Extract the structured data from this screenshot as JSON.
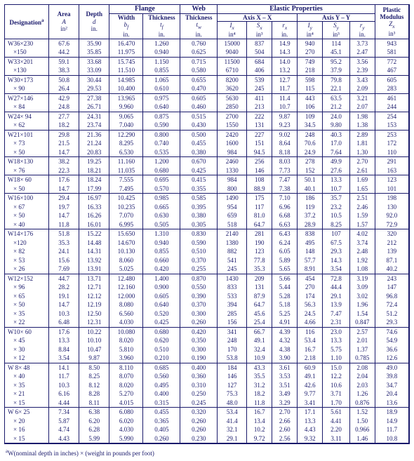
{
  "headers": {
    "designation": "Designation",
    "area": "Area",
    "area_sym": "A",
    "area_unit": "in²",
    "depth": "Depth",
    "depth_sym": "d",
    "depth_unit": "in.",
    "flange": "Flange",
    "flange_width": "Width",
    "flange_width_sym": "b_f",
    "flange_width_unit": "in.",
    "flange_thk": "Thickness",
    "flange_thk_sym": "t_f",
    "flange_thk_unit": "in.",
    "web": "Web",
    "web_thk": "Thickness",
    "web_thk_sym": "t_w",
    "web_thk_unit": "in.",
    "elastic": "Elastic Properties",
    "axis_xx": "Axis X – X",
    "axis_yy": "Axis Y – Y",
    "Ix": "I_x",
    "Ix_unit": "in⁴",
    "Sx": "S_x",
    "Sx_unit": "in³",
    "rx": "r_x",
    "rx_unit": "in.",
    "Iy": "I_y",
    "Iy_unit": "in⁴",
    "Sy": "S_y",
    "Sy_unit": "in³",
    "ry": "r_y",
    "ry_unit": "in.",
    "plastic": "Plastic\nModulus",
    "Zx": "Z_x",
    "Zx_unit": "in³",
    "footnote_sup": "a",
    "footnote": "W(nominal depth in inches) × (weight in pounds per foot)"
  },
  "style": {
    "border_color": "#1a1a6c",
    "text_color": "#1a1a6c",
    "background": "#ffffff",
    "font_family": "Times New Roman",
    "base_fontsize_pt": 7
  },
  "sections": [
    {
      "rows": [
        {
          "d": "W36×230",
          "A": "67.6",
          "dep": "35.90",
          "bf": "16.470",
          "tf": "1.260",
          "tw": "0.760",
          "Ix": "15000",
          "Sx": "837",
          "rx": "14.9",
          "Iy": "940",
          "Sy": "114",
          "ry": "3.73",
          "Zx": "943"
        },
        {
          "d": "×150",
          "A": "44.2",
          "dep": "35.85",
          "bf": "11.975",
          "tf": "0.940",
          "tw": "0.625",
          "Ix": "9040",
          "Sx": "504",
          "rx": "14.3",
          "Iy": "270",
          "Sy": "45.1",
          "ry": "2.47",
          "Zx": "581"
        }
      ]
    },
    {
      "rows": [
        {
          "d": "W33×201",
          "A": "59.1",
          "dep": "33.68",
          "bf": "15.745",
          "tf": "1.150",
          "tw": "0.715",
          "Ix": "11500",
          "Sx": "684",
          "rx": "14.0",
          "Iy": "749",
          "Sy": "95.2",
          "ry": "3.56",
          "Zx": "772"
        },
        {
          "d": "×130",
          "A": "38.3",
          "dep": "33.09",
          "bf": "11.510",
          "tf": "0.855",
          "tw": "0.580",
          "Ix": "6710",
          "Sx": "406",
          "rx": "13.2",
          "Iy": "218",
          "Sy": "37.9",
          "ry": "2.39",
          "Zx": "467"
        }
      ]
    },
    {
      "rows": [
        {
          "d": "W30×173",
          "A": "50.8",
          "dep": "30.44",
          "bf": "14.985",
          "tf": "1.065",
          "tw": "0.655",
          "Ix": "8200",
          "Sx": "539",
          "rx": "12.7",
          "Iy": "598",
          "Sy": "79.8",
          "ry": "3.43",
          "Zx": "605"
        },
        {
          "d": "× 90",
          "A": "26.4",
          "dep": "29.53",
          "bf": "10.400",
          "tf": "0.610",
          "tw": "0.470",
          "Ix": "3620",
          "Sx": "245",
          "rx": "11.7",
          "Iy": "115",
          "Sy": "22.1",
          "ry": "2.09",
          "Zx": "283"
        }
      ]
    },
    {
      "rows": [
        {
          "d": "W27×146",
          "A": "42.9",
          "dep": "27.38",
          "bf": "13.965",
          "tf": "0.975",
          "tw": "0.605",
          "Ix": "5630",
          "Sx": "411",
          "rx": "11.4",
          "Iy": "443",
          "Sy": "63.5",
          "ry": "3.21",
          "Zx": "461"
        },
        {
          "d": "× 84",
          "A": "24.8",
          "dep": "26.71",
          "bf": "9.960",
          "tf": "0.640",
          "tw": "0.460",
          "Ix": "2850",
          "Sx": "213",
          "rx": "10.7",
          "Iy": "106",
          "Sy": "21.2",
          "ry": "2.07",
          "Zx": "244"
        }
      ]
    },
    {
      "rows": [
        {
          "d": "W24× 94",
          "A": "27.7",
          "dep": "24.31",
          "bf": "9.065",
          "tf": "0.875",
          "tw": "0.515",
          "Ix": "2700",
          "Sx": "222",
          "rx": "9.87",
          "Iy": "109",
          "Sy": "24.0",
          "ry": "1.98",
          "Zx": "254"
        },
        {
          "d": "× 62",
          "A": "18.2",
          "dep": "23.74",
          "bf": "7.040",
          "tf": "0.590",
          "tw": "0.430",
          "Ix": "1550",
          "Sx": "131",
          "rx": "9.23",
          "Iy": "34.5",
          "Sy": "9.80",
          "ry": "1.38",
          "Zx": "153"
        }
      ]
    },
    {
      "rows": [
        {
          "d": "W21×101",
          "A": "29.8",
          "dep": "21.36",
          "bf": "12.290",
          "tf": "0.800",
          "tw": "0.500",
          "Ix": "2420",
          "Sx": "227",
          "rx": "9.02",
          "Iy": "248",
          "Sy": "40.3",
          "ry": "2.89",
          "Zx": "253"
        },
        {
          "d": "× 73",
          "A": "21.5",
          "dep": "21.24",
          "bf": "8.295",
          "tf": "0.740",
          "tw": "0.455",
          "Ix": "1600",
          "Sx": "151",
          "rx": "8.64",
          "Iy": "70.6",
          "Sy": "17.0",
          "ry": "1.81",
          "Zx": "172"
        },
        {
          "d": "× 50",
          "A": "14.7",
          "dep": "20.83",
          "bf": "6.530",
          "tf": "0.535",
          "tw": "0.380",
          "Ix": "984",
          "Sx": "94.5",
          "rx": "8.18",
          "Iy": "24.9",
          "Sy": "7.64",
          "ry": "1.30",
          "Zx": "110"
        }
      ]
    },
    {
      "rows": [
        {
          "d": "W18×130",
          "A": "38.2",
          "dep": "19.25",
          "bf": "11.160",
          "tf": "1.200",
          "tw": "0.670",
          "Ix": "2460",
          "Sx": "256",
          "rx": "8.03",
          "Iy": "278",
          "Sy": "49.9",
          "ry": "2.70",
          "Zx": "291"
        },
        {
          "d": "× 76",
          "A": "22.3",
          "dep": "18.21",
          "bf": "11.035",
          "tf": "0.680",
          "tw": "0.425",
          "Ix": "1330",
          "Sx": "146",
          "rx": "7.73",
          "Iy": "152",
          "Sy": "27.6",
          "ry": "2.61",
          "Zx": "163"
        }
      ]
    },
    {
      "rows": [
        {
          "d": "W18× 60",
          "A": "17.6",
          "dep": "18.24",
          "bf": "7.555",
          "tf": "0.695",
          "tw": "0.415",
          "Ix": "984",
          "Sx": "108",
          "rx": "7.47",
          "Iy": "50.1",
          "Sy": "13.3",
          "ry": "1.69",
          "Zx": "123"
        },
        {
          "d": "× 50",
          "A": "14.7",
          "dep": "17.99",
          "bf": "7.495",
          "tf": "0.570",
          "tw": "0.355",
          "Ix": "800",
          "Sx": "88.9",
          "rx": "7.38",
          "Iy": "40.1",
          "Sy": "10.7",
          "ry": "1.65",
          "Zx": "101"
        }
      ]
    },
    {
      "rows": [
        {
          "d": "W16×100",
          "A": "29.4",
          "dep": "16.97",
          "bf": "10.425",
          "tf": "0.985",
          "tw": "0.585",
          "Ix": "1490",
          "Sx": "175",
          "rx": "7.10",
          "Iy": "186",
          "Sy": "35.7",
          "ry": "2.51",
          "Zx": "198"
        },
        {
          "d": "× 67",
          "A": "19.7",
          "dep": "16.33",
          "bf": "10.235",
          "tf": "0.665",
          "tw": "0.395",
          "Ix": "954",
          "Sx": "117",
          "rx": "6.96",
          "Iy": "119",
          "Sy": "23.2",
          "ry": "2.46",
          "Zx": "130"
        },
        {
          "d": "× 50",
          "A": "14.7",
          "dep": "16.26",
          "bf": "7.070",
          "tf": "0.630",
          "tw": "0.380",
          "Ix": "659",
          "Sx": "81.0",
          "rx": "6.68",
          "Iy": "37.2",
          "Sy": "10.5",
          "ry": "1.59",
          "Zx": "92.0"
        },
        {
          "d": "× 40",
          "A": "11.8",
          "dep": "16.01",
          "bf": "6.995",
          "tf": "0.505",
          "tw": "0.305",
          "Ix": "518",
          "Sx": "64.7",
          "rx": "6.63",
          "Iy": "28.9",
          "Sy": "8.25",
          "ry": "1.57",
          "Zx": "72.9"
        }
      ]
    },
    {
      "rows": [
        {
          "d": "W14×176",
          "A": "51.8",
          "dep": "15.22",
          "bf": "15.650",
          "tf": "1.310",
          "tw": "0.830",
          "Ix": "2140",
          "Sx": "281",
          "rx": "6.43",
          "Iy": "838",
          "Sy": "107",
          "ry": "4.02",
          "Zx": "320"
        },
        {
          "d": "×120",
          "A": "35.3",
          "dep": "14.48",
          "bf": "14.670",
          "tf": "0.940",
          "tw": "0.590",
          "Ix": "1380",
          "Sx": "190",
          "rx": "6.24",
          "Iy": "495",
          "Sy": "67.5",
          "ry": "3.74",
          "Zx": "212"
        },
        {
          "d": "× 82",
          "A": "24.1",
          "dep": "14.31",
          "bf": "10.130",
          "tf": "0.855",
          "tw": "0.510",
          "Ix": "882",
          "Sx": "123",
          "rx": "6.05",
          "Iy": "148",
          "Sy": "29.3",
          "ry": "2.48",
          "Zx": "139"
        },
        {
          "d": "× 53",
          "A": "15.6",
          "dep": "13.92",
          "bf": "8.060",
          "tf": "0.660",
          "tw": "0.370",
          "Ix": "541",
          "Sx": "77.8",
          "rx": "5.89",
          "Iy": "57.7",
          "Sy": "14.3",
          "ry": "1.92",
          "Zx": "87.1"
        },
        {
          "d": "× 26",
          "A": "7.69",
          "dep": "13.91",
          "bf": "5.025",
          "tf": "0.420",
          "tw": "0.255",
          "Ix": "245",
          "Sx": "35.3",
          "rx": "5.65",
          "Iy": "8.91",
          "Sy": "3.54",
          "ry": "1.08",
          "Zx": "40.2"
        }
      ]
    },
    {
      "rows": [
        {
          "d": "W12×152",
          "A": "44.7",
          "dep": "13.71",
          "bf": "12.480",
          "tf": "1.400",
          "tw": "0.870",
          "Ix": "1430",
          "Sx": "209",
          "rx": "5.66",
          "Iy": "454",
          "Sy": "72.8",
          "ry": "3.19",
          "Zx": "243"
        },
        {
          "d": "× 96",
          "A": "28.2",
          "dep": "12.71",
          "bf": "12.160",
          "tf": "0.900",
          "tw": "0.550",
          "Ix": "833",
          "Sx": "131",
          "rx": "5.44",
          "Iy": "270",
          "Sy": "44.4",
          "ry": "3.09",
          "Zx": "147"
        },
        {
          "d": "× 65",
          "A": "19.1",
          "dep": "12.12",
          "bf": "12.000",
          "tf": "0.605",
          "tw": "0.390",
          "Ix": "533",
          "Sx": "87.9",
          "rx": "5.28",
          "Iy": "174",
          "Sy": "29.1",
          "ry": "3.02",
          "Zx": "96.8"
        },
        {
          "d": "× 50",
          "A": "14.7",
          "dep": "12.19",
          "bf": "8.080",
          "tf": "0.640",
          "tw": "0.370",
          "Ix": "394",
          "Sx": "64.7",
          "rx": "5.18",
          "Iy": "56.3",
          "Sy": "13.9",
          "ry": "1.96",
          "Zx": "72.4"
        },
        {
          "d": "× 35",
          "A": "10.3",
          "dep": "12.50",
          "bf": "6.560",
          "tf": "0.520",
          "tw": "0.300",
          "Ix": "285",
          "Sx": "45.6",
          "rx": "5.25",
          "Iy": "24.5",
          "Sy": "7.47",
          "ry": "1.54",
          "Zx": "51.2"
        },
        {
          "d": "× 22",
          "A": "6.48",
          "dep": "12.31",
          "bf": "4.030",
          "tf": "0.425",
          "tw": "0.260",
          "Ix": "156",
          "Sx": "25.4",
          "rx": "4.91",
          "Iy": "4.66",
          "Sy": "2.31",
          "ry": "0.847",
          "Zx": "29.3"
        }
      ]
    },
    {
      "rows": [
        {
          "d": "W10× 60",
          "A": "17.6",
          "dep": "10.22",
          "bf": "10.080",
          "tf": "0.680",
          "tw": "0.420",
          "Ix": "341",
          "Sx": "66.7",
          "rx": "4.39",
          "Iy": "116",
          "Sy": "23.0",
          "ry": "2.57",
          "Zx": "74.6"
        },
        {
          "d": "× 45",
          "A": "13.3",
          "dep": "10.10",
          "bf": "8.020",
          "tf": "0.620",
          "tw": "0.350",
          "Ix": "248",
          "Sx": "49.1",
          "rx": "4.32",
          "Iy": "53.4",
          "Sy": "13.3",
          "ry": "2.01",
          "Zx": "54.9"
        },
        {
          "d": "× 30",
          "A": "8.84",
          "dep": "10.47",
          "bf": "5.810",
          "tf": "0.510",
          "tw": "0.300",
          "Ix": "170",
          "Sx": "32.4",
          "rx": "4.38",
          "Iy": "16.7",
          "Sy": "5.75",
          "ry": "1.37",
          "Zx": "36.6"
        },
        {
          "d": "× 12",
          "A": "3.54",
          "dep": "9.87",
          "bf": "3.960",
          "tf": "0.210",
          "tw": "0.190",
          "Ix": "53.8",
          "Sx": "10.9",
          "rx": "3.90",
          "Iy": "2.18",
          "Sy": "1.10",
          "ry": "0.785",
          "Zx": "12.6"
        }
      ]
    },
    {
      "rows": [
        {
          "d": "W 8× 48",
          "A": "14.1",
          "dep": "8.50",
          "bf": "8.110",
          "tf": "0.685",
          "tw": "0.400",
          "Ix": "184",
          "Sx": "43.3",
          "rx": "3.61",
          "Iy": "60.9",
          "Sy": "15.0",
          "ry": "2.08",
          "Zx": "49.0"
        },
        {
          "d": "× 40",
          "A": "11.7",
          "dep": "8.25",
          "bf": "8.070",
          "tf": "0.560",
          "tw": "0.360",
          "Ix": "146",
          "Sx": "35.5",
          "rx": "3.53",
          "Iy": "49.1",
          "Sy": "12.2",
          "ry": "2.04",
          "Zx": "39.8"
        },
        {
          "d": "× 35",
          "A": "10.3",
          "dep": "8.12",
          "bf": "8.020",
          "tf": "0.495",
          "tw": "0.310",
          "Ix": "127",
          "Sx": "31.2",
          "rx": "3.51",
          "Iy": "42.6",
          "Sy": "10.6",
          "ry": "2.03",
          "Zx": "34.7"
        },
        {
          "d": "× 21",
          "A": "6.16",
          "dep": "8.28",
          "bf": "5.270",
          "tf": "0.400",
          "tw": "0.250",
          "Ix": "75.3",
          "Sx": "18.2",
          "rx": "3.49",
          "Iy": "9.77",
          "Sy": "3.71",
          "ry": "1.26",
          "Zx": "20.4"
        },
        {
          "d": "× 15",
          "A": "4.44",
          "dep": "8.11",
          "bf": "4.015",
          "tf": "0.315",
          "tw": "0.245",
          "Ix": "48.0",
          "Sx": "11.8",
          "rx": "3.29",
          "Iy": "3.41",
          "Sy": "1.70",
          "ry": "0.876",
          "Zx": "13.6"
        }
      ]
    },
    {
      "rows": [
        {
          "d": "W 6× 25",
          "A": "7.34",
          "dep": "6.38",
          "bf": "6.080",
          "tf": "0.455",
          "tw": "0.320",
          "Ix": "53.4",
          "Sx": "16.7",
          "rx": "2.70",
          "Iy": "17.1",
          "Sy": "5.61",
          "ry": "1.52",
          "Zx": "18.9"
        },
        {
          "d": "× 20",
          "A": "5.87",
          "dep": "6.20",
          "bf": "6.020",
          "tf": "0.365",
          "tw": "0.260",
          "Ix": "41.4",
          "Sx": "13.4",
          "rx": "2.66",
          "Iy": "13.3",
          "Sy": "4.41",
          "ry": "1.50",
          "Zx": "14.9"
        },
        {
          "d": "× 16",
          "A": "4.74",
          "dep": "6.28",
          "bf": "4.030",
          "tf": "0.405",
          "tw": "0.260",
          "Ix": "32.1",
          "Sx": "10.2",
          "rx": "2.60",
          "Iy": "4.43",
          "Sy": "2.20",
          "ry": "0.966",
          "Zx": "11.7"
        },
        {
          "d": "× 15",
          "A": "4.43",
          "dep": "5.99",
          "bf": "5.990",
          "tf": "0.260",
          "tw": "0.230",
          "Ix": "29.1",
          "Sx": "9.72",
          "rx": "2.56",
          "Iy": "9.32",
          "Sy": "3.11",
          "ry": "1.46",
          "Zx": "10.8"
        }
      ]
    }
  ]
}
